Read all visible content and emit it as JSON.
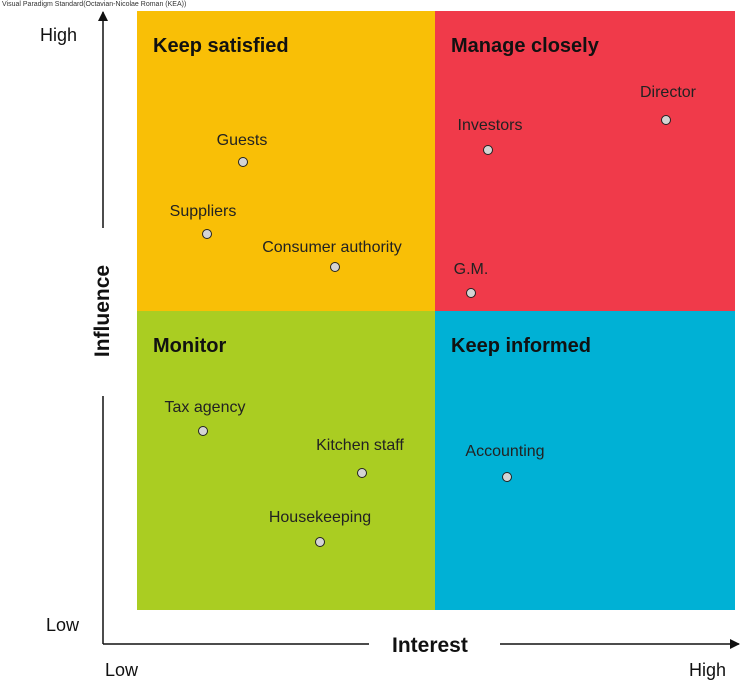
{
  "watermark": "Visual Paradigm Standard(Octavian-Nicolae Roman (KEA))",
  "axes": {
    "x_title": "Interest",
    "y_title": "Influence",
    "y_high": "High",
    "y_low": "Low",
    "x_low": "Low",
    "x_high": "High"
  },
  "quadrants": [
    {
      "id": "keep-satisfied",
      "title": "Keep satisfied",
      "color": "#f9bf06"
    },
    {
      "id": "manage-closely",
      "title": "Manage closely",
      "color": "#f03a4a"
    },
    {
      "id": "monitor",
      "title": "Monitor",
      "color": "#aacd22"
    },
    {
      "id": "keep-informed",
      "title": "Keep informed",
      "color": "#00b1d5"
    }
  ],
  "stakeholders": [
    {
      "label": "Guests"
    },
    {
      "label": "Suppliers"
    },
    {
      "label": "Consumer authority"
    },
    {
      "label": "Investors"
    },
    {
      "label": "Director"
    },
    {
      "label": "G.M."
    },
    {
      "label": "Tax agency"
    },
    {
      "label": "Kitchen staff"
    },
    {
      "label": "Housekeeping"
    },
    {
      "label": "Accounting"
    }
  ]
}
